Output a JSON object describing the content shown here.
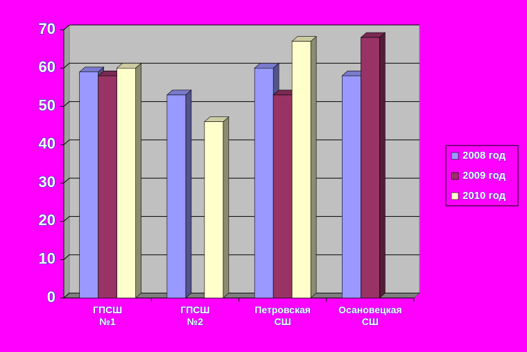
{
  "chart_data": {
    "type": "bar3d",
    "categories": [
      "ГПСШ №1",
      "ГПСШ №2",
      "Петровская СШ",
      "Осановецкая СШ"
    ],
    "series": [
      {
        "name": "2008 год",
        "color": "#9999ff",
        "values": [
          59,
          53,
          60,
          58
        ]
      },
      {
        "name": "2009 год",
        "color": "#993366",
        "values": [
          58,
          null,
          53,
          68
        ]
      },
      {
        "name": "2010 год",
        "color": "#ffffcc",
        "values": [
          60,
          46,
          67,
          null
        ]
      }
    ],
    "ylim": [
      0,
      70
    ],
    "yticks": [
      0,
      10,
      20,
      30,
      40,
      50,
      60,
      70
    ],
    "grid": true,
    "legend": "right"
  }
}
